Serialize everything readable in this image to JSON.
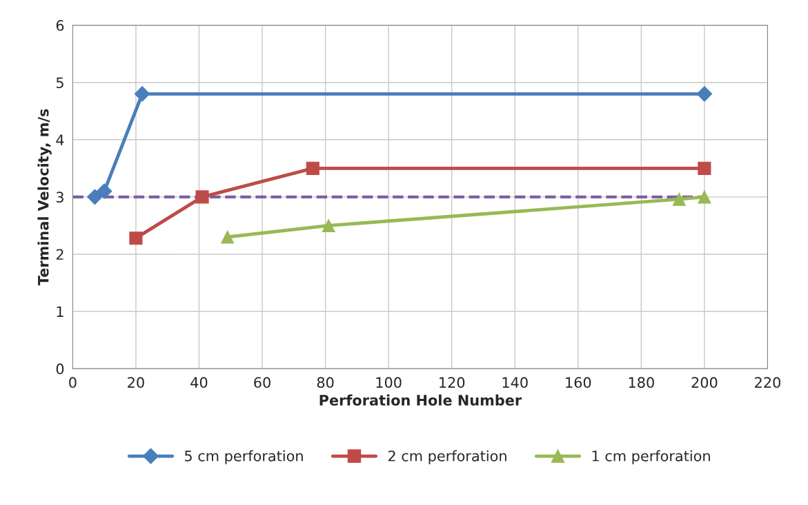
{
  "chart_data": {
    "type": "line",
    "xlabel": "Perforation Hole Number",
    "ylabel": "Terminal Velocity, m/s",
    "xlim": [
      0,
      220
    ],
    "xticks": [
      0,
      20,
      40,
      60,
      80,
      100,
      120,
      140,
      160,
      180,
      200,
      220
    ],
    "ylim": [
      0,
      6
    ],
    "yticks": [
      0,
      1,
      2,
      3,
      4,
      5,
      6
    ],
    "grid": true,
    "legend": "bottom",
    "series": [
      {
        "name": "5 cm perforation",
        "color": "#4a7ebb",
        "marker": "diamond",
        "x": [
          7,
          10,
          22,
          200
        ],
        "values": [
          3.0,
          3.1,
          4.8,
          4.8
        ]
      },
      {
        "name": "2 cm perforation",
        "color": "#be4b48",
        "marker": "square",
        "x": [
          20,
          41,
          76,
          200
        ],
        "values": [
          2.28,
          3.0,
          3.5,
          3.5
        ]
      },
      {
        "name": "1 cm perforation",
        "color": "#98b954",
        "marker": "triangle",
        "x": [
          49,
          81,
          192,
          200
        ],
        "values": [
          2.3,
          2.5,
          2.96,
          3.0
        ]
      },
      {
        "color": "#7d60a0",
        "marker": "none",
        "line_style": "dashed",
        "x": [
          0,
          200
        ],
        "values": [
          3.0,
          3.0
        ]
      }
    ]
  }
}
